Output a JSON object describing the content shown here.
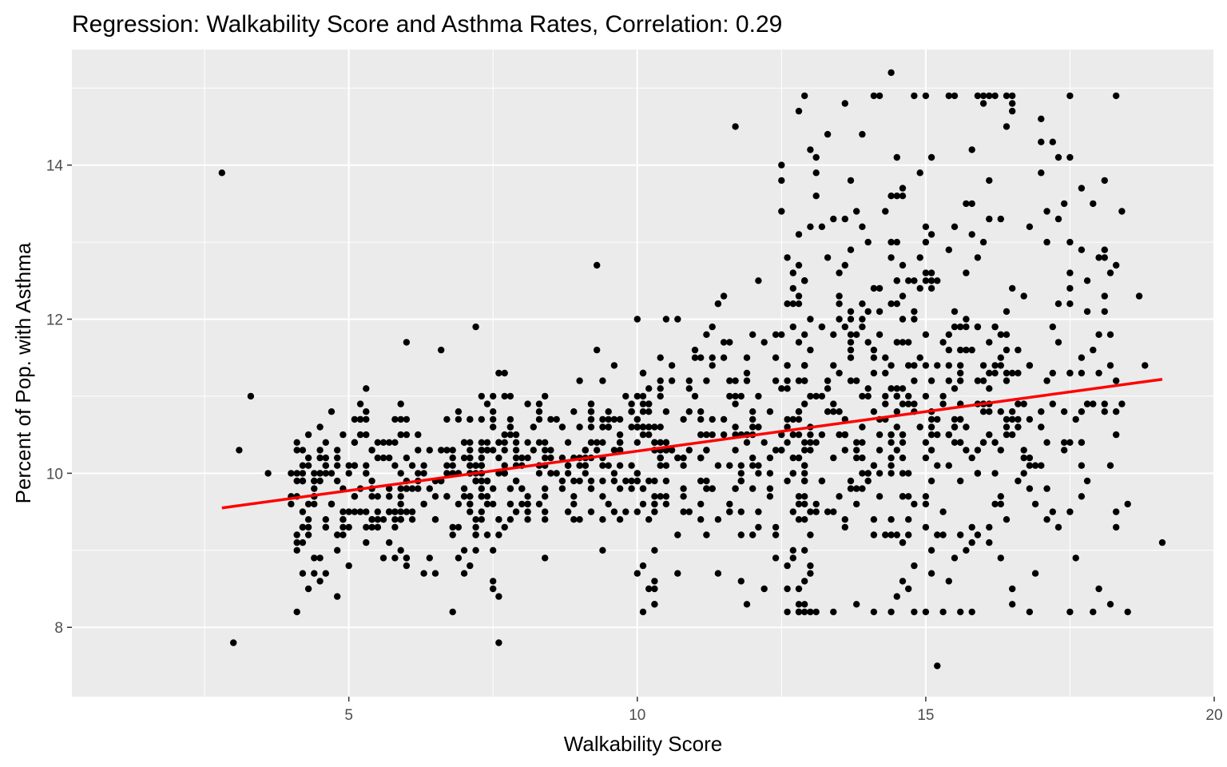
{
  "chart_data": {
    "type": "scatter",
    "title": "Regression: Walkability Score and Asthma Rates, Correlation: 0.29",
    "xlabel": "Walkability Score",
    "ylabel": "Percent of Pop. with Asthma",
    "xlim": [
      0.2,
      20.0
    ],
    "ylim": [
      7.1,
      15.5
    ],
    "x_ticks": [
      5,
      10,
      15,
      20
    ],
    "y_ticks": [
      8,
      10,
      12,
      14
    ],
    "grid": true,
    "legend": "none",
    "colors": {
      "panel": "#ebebeb",
      "grid": "#ffffff",
      "point": "#000000",
      "fit_line": "#ff0000"
    },
    "fit_line": {
      "x": [
        2.8,
        19.1
      ],
      "y": [
        9.55,
        11.22
      ]
    },
    "point_count": 1200,
    "outliers": [
      {
        "x": 2.8,
        "y": 13.9
      },
      {
        "x": 3.0,
        "y": 7.8
      },
      {
        "x": 3.1,
        "y": 10.3
      },
      {
        "x": 3.3,
        "y": 11.0
      },
      {
        "x": 3.6,
        "y": 10.0
      },
      {
        "x": 7.6,
        "y": 7.8
      },
      {
        "x": 15.2,
        "y": 7.5
      },
      {
        "x": 19.1,
        "y": 9.1
      },
      {
        "x": 14.4,
        "y": 15.2
      },
      {
        "x": 9.3,
        "y": 12.7
      },
      {
        "x": 11.7,
        "y": 14.5
      },
      {
        "x": 16.5,
        "y": 14.8
      },
      {
        "x": 17.0,
        "y": 14.6
      },
      {
        "x": 18.1,
        "y": 13.8
      },
      {
        "x": 18.7,
        "y": 12.3
      },
      {
        "x": 7.2,
        "y": 11.9
      },
      {
        "x": 6.0,
        "y": 11.7
      },
      {
        "x": 12.9,
        "y": 8.2
      },
      {
        "x": 11.9,
        "y": 8.3
      },
      {
        "x": 13.8,
        "y": 8.3
      },
      {
        "x": 7.6,
        "y": 8.4
      },
      {
        "x": 18.0,
        "y": 8.5
      },
      {
        "x": 18.5,
        "y": 9.6
      },
      {
        "x": 18.8,
        "y": 11.4
      }
    ]
  }
}
